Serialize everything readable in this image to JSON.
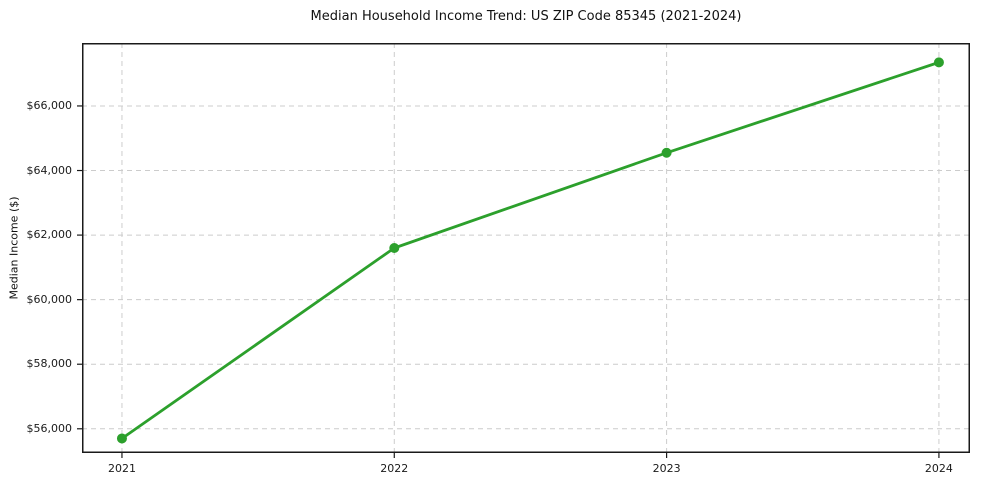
{
  "chart_data": {
    "type": "line",
    "title": "Median Household Income Trend: US ZIP Code 85345 (2021-2024)",
    "xlabel": "",
    "ylabel": "Median Income ($)",
    "categories": [
      "2021",
      "2022",
      "2023",
      "2024"
    ],
    "series": [
      {
        "name": "Median Household Income",
        "values": [
          55700,
          61600,
          64550,
          67350
        ]
      }
    ],
    "y_ticks": [
      56000,
      58000,
      60000,
      62000,
      64000,
      66000
    ],
    "y_tick_labels": [
      "$56,000",
      "$58,000",
      "$60,000",
      "$62,000",
      "$64,000",
      "$66,000"
    ],
    "ylim": [
      55250,
      67950
    ],
    "grid": true,
    "grid_style": "dashed",
    "grid_color": "#cccccc",
    "line_color": "#2ca02c",
    "marker": "circle",
    "spine_color": "#1a1a1a",
    "background": "#ffffff",
    "legend": "none"
  }
}
